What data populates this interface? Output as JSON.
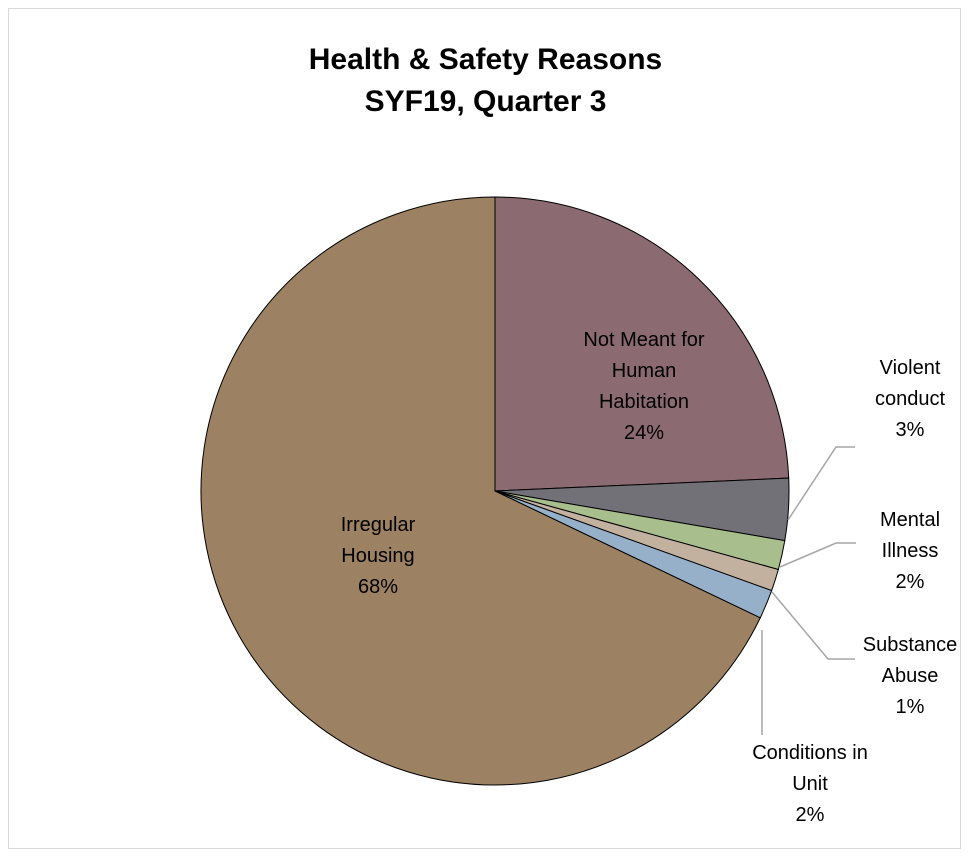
{
  "chart_data": {
    "type": "pie",
    "title_lines": [
      "Health & Safety Reasons",
      "SYF19, Quarter 3"
    ],
    "slices": [
      {
        "label_lines": [
          "Not Meant for",
          "Human",
          "Habitation"
        ],
        "percent_label": "24%",
        "value": 24.3,
        "color": "#8c6a72"
      },
      {
        "label_lines": [
          "Violent",
          "conduct"
        ],
        "percent_label": "3%",
        "value": 3.4,
        "color": "#727178"
      },
      {
        "label_lines": [
          "Mental",
          "Illness"
        ],
        "percent_label": "2%",
        "value": 1.6,
        "color": "#a9be8d"
      },
      {
        "label_lines": [
          "Substance",
          "Abuse"
        ],
        "percent_label": "1%",
        "value": 1.2,
        "color": "#c2b19e"
      },
      {
        "label_lines": [
          "Conditions in",
          "Unit"
        ],
        "percent_label": "2%",
        "value": 1.6,
        "color": "#96b0c9"
      },
      {
        "label_lines": [
          "Irregular",
          "Housing"
        ],
        "percent_label": "68%",
        "value": 67.9,
        "color": "#9c8263"
      }
    ],
    "start_angle_deg": 0,
    "direction": "clockwise",
    "legend": "none",
    "data_labels": "category and percentage"
  }
}
